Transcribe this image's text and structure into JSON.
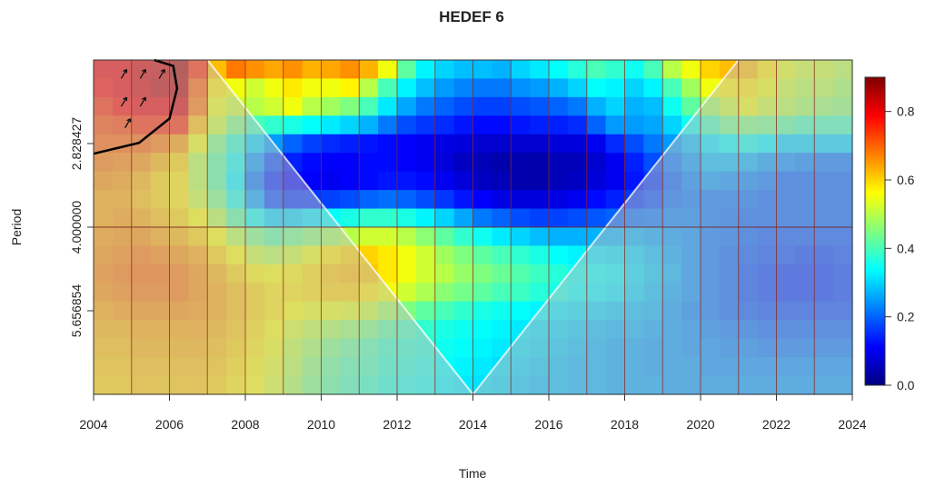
{
  "chart_data": {
    "type": "heatmap",
    "title": "HEDEF 6",
    "xlabel": "Time",
    "ylabel": "Period",
    "x_range": [
      2004,
      2024
    ],
    "x_ticks": [
      "2004",
      "2006",
      "2008",
      "2010",
      "2012",
      "2014",
      "2016",
      "2018",
      "2020",
      "2022",
      "2024"
    ],
    "y_scale": "log2",
    "y_range": [
      2,
      8
    ],
    "y_ticks": [
      {
        "value": 2.828427,
        "label": "2.828427"
      },
      {
        "value": 4.0,
        "label": "4.000000"
      },
      {
        "value": 5.656854,
        "label": "5.656854"
      }
    ],
    "colorbar": {
      "range": [
        0,
        0.9
      ],
      "ticks": [
        "0.0",
        "0.2",
        "0.4",
        "0.6",
        "0.8"
      ],
      "colors": [
        "#00007f",
        "#0000ff",
        "#007fff",
        "#00ffff",
        "#7fff7f",
        "#ffff00",
        "#ff7f00",
        "#ff0000",
        "#7f0000"
      ]
    },
    "grid": "vertical lines at each year",
    "cone_of_influence": [
      [
        2007,
        2
      ],
      [
        2014,
        8
      ],
      [
        2021,
        2
      ]
    ],
    "significance_contour": "region around 2004–2006 at short periods (~2–2.5)",
    "power": {
      "rows_from_short_to_long_period": 18,
      "columns_from_2004_to_2024": 40,
      "values": [
        [
          0.8,
          0.8,
          0.82,
          0.83,
          0.86,
          0.75,
          0.62,
          0.68,
          0.66,
          0.64,
          0.66,
          0.63,
          0.64,
          0.66,
          0.63,
          0.55,
          0.42,
          0.33,
          0.3,
          0.28,
          0.28,
          0.27,
          0.3,
          0.32,
          0.34,
          0.37,
          0.4,
          0.38,
          0.35,
          0.4,
          0.5,
          0.55,
          0.6,
          0.62,
          0.62,
          0.58,
          0.54,
          0.52,
          0.52,
          0.5
        ],
        [
          0.78,
          0.8,
          0.82,
          0.84,
          0.85,
          0.7,
          0.58,
          0.55,
          0.52,
          0.55,
          0.58,
          0.55,
          0.55,
          0.57,
          0.5,
          0.4,
          0.33,
          0.28,
          0.25,
          0.23,
          0.22,
          0.22,
          0.24,
          0.25,
          0.27,
          0.3,
          0.34,
          0.33,
          0.3,
          0.33,
          0.4,
          0.48,
          0.55,
          0.57,
          0.58,
          0.55,
          0.52,
          0.5,
          0.5,
          0.48
        ],
        [
          0.75,
          0.78,
          0.8,
          0.8,
          0.82,
          0.68,
          0.55,
          0.52,
          0.5,
          0.52,
          0.55,
          0.5,
          0.48,
          0.45,
          0.4,
          0.32,
          0.26,
          0.22,
          0.2,
          0.18,
          0.17,
          0.17,
          0.18,
          0.19,
          0.2,
          0.22,
          0.27,
          0.3,
          0.27,
          0.28,
          0.35,
          0.42,
          0.48,
          0.52,
          0.55,
          0.52,
          0.5,
          0.48,
          0.47,
          0.46
        ],
        [
          0.72,
          0.73,
          0.75,
          0.75,
          0.75,
          0.62,
          0.52,
          0.45,
          0.4,
          0.38,
          0.36,
          0.34,
          0.32,
          0.3,
          0.27,
          0.22,
          0.18,
          0.16,
          0.15,
          0.13,
          0.12,
          0.12,
          0.13,
          0.14,
          0.14,
          0.15,
          0.2,
          0.25,
          0.25,
          0.26,
          0.3,
          0.35,
          0.4,
          0.44,
          0.45,
          0.44,
          0.42,
          0.4,
          0.4,
          0.4
        ],
        [
          0.7,
          0.7,
          0.7,
          0.68,
          0.65,
          0.55,
          0.45,
          0.38,
          0.3,
          0.25,
          0.2,
          0.17,
          0.15,
          0.14,
          0.13,
          0.12,
          0.11,
          0.1,
          0.09,
          0.08,
          0.07,
          0.07,
          0.07,
          0.07,
          0.08,
          0.08,
          0.1,
          0.15,
          0.18,
          0.22,
          0.25,
          0.28,
          0.32,
          0.34,
          0.35,
          0.33,
          0.3,
          0.3,
          0.3,
          0.3
        ],
        [
          0.68,
          0.67,
          0.66,
          0.63,
          0.6,
          0.5,
          0.42,
          0.35,
          0.25,
          0.18,
          0.14,
          0.12,
          0.11,
          0.11,
          0.12,
          0.12,
          0.11,
          0.1,
          0.08,
          0.06,
          0.05,
          0.04,
          0.04,
          0.04,
          0.05,
          0.05,
          0.07,
          0.1,
          0.14,
          0.18,
          0.22,
          0.25,
          0.28,
          0.28,
          0.27,
          0.25,
          0.24,
          0.23,
          0.22,
          0.22
        ],
        [
          0.66,
          0.65,
          0.63,
          0.6,
          0.58,
          0.5,
          0.42,
          0.33,
          0.22,
          0.15,
          0.12,
          0.11,
          0.1,
          0.11,
          0.12,
          0.13,
          0.13,
          0.12,
          0.1,
          0.08,
          0.06,
          0.05,
          0.04,
          0.04,
          0.05,
          0.06,
          0.08,
          0.1,
          0.13,
          0.16,
          0.2,
          0.23,
          0.25,
          0.24,
          0.23,
          0.22,
          0.2,
          0.2,
          0.2,
          0.2
        ],
        [
          0.64,
          0.64,
          0.62,
          0.6,
          0.58,
          0.52,
          0.45,
          0.36,
          0.26,
          0.18,
          0.16,
          0.16,
          0.17,
          0.18,
          0.2,
          0.21,
          0.2,
          0.18,
          0.16,
          0.13,
          0.11,
          0.09,
          0.08,
          0.08,
          0.09,
          0.1,
          0.12,
          0.14,
          0.16,
          0.18,
          0.21,
          0.22,
          0.22,
          0.22,
          0.21,
          0.2,
          0.2,
          0.2,
          0.2,
          0.2
        ],
        [
          0.64,
          0.65,
          0.64,
          0.62,
          0.6,
          0.56,
          0.5,
          0.42,
          0.35,
          0.3,
          0.3,
          0.32,
          0.34,
          0.36,
          0.38,
          0.38,
          0.36,
          0.33,
          0.3,
          0.26,
          0.22,
          0.2,
          0.18,
          0.17,
          0.17,
          0.18,
          0.19,
          0.2,
          0.21,
          0.22,
          0.23,
          0.23,
          0.22,
          0.21,
          0.2,
          0.2,
          0.2,
          0.2,
          0.2,
          0.2
        ],
        [
          0.65,
          0.66,
          0.66,
          0.64,
          0.63,
          0.6,
          0.56,
          0.5,
          0.45,
          0.42,
          0.44,
          0.46,
          0.48,
          0.5,
          0.52,
          0.52,
          0.5,
          0.46,
          0.42,
          0.38,
          0.35,
          0.32,
          0.3,
          0.28,
          0.27,
          0.27,
          0.27,
          0.27,
          0.27,
          0.26,
          0.25,
          0.24,
          0.22,
          0.21,
          0.2,
          0.19,
          0.19,
          0.19,
          0.19,
          0.19
        ],
        [
          0.66,
          0.67,
          0.68,
          0.67,
          0.66,
          0.64,
          0.6,
          0.56,
          0.52,
          0.5,
          0.52,
          0.55,
          0.58,
          0.6,
          0.6,
          0.58,
          0.55,
          0.52,
          0.48,
          0.45,
          0.42,
          0.4,
          0.38,
          0.36,
          0.34,
          0.33,
          0.32,
          0.31,
          0.3,
          0.28,
          0.26,
          0.24,
          0.22,
          0.2,
          0.19,
          0.18,
          0.18,
          0.17,
          0.17,
          0.18
        ],
        [
          0.67,
          0.68,
          0.69,
          0.69,
          0.68,
          0.66,
          0.63,
          0.6,
          0.57,
          0.56,
          0.57,
          0.59,
          0.61,
          0.62,
          0.61,
          0.58,
          0.55,
          0.52,
          0.5,
          0.47,
          0.45,
          0.43,
          0.41,
          0.39,
          0.37,
          0.35,
          0.34,
          0.33,
          0.31,
          0.29,
          0.27,
          0.24,
          0.22,
          0.2,
          0.18,
          0.17,
          0.16,
          0.16,
          0.16,
          0.17
        ],
        [
          0.66,
          0.67,
          0.68,
          0.68,
          0.68,
          0.66,
          0.64,
          0.62,
          0.6,
          0.58,
          0.58,
          0.59,
          0.6,
          0.6,
          0.58,
          0.55,
          0.52,
          0.49,
          0.46,
          0.44,
          0.42,
          0.4,
          0.39,
          0.37,
          0.36,
          0.34,
          0.33,
          0.32,
          0.3,
          0.28,
          0.26,
          0.24,
          0.22,
          0.2,
          0.18,
          0.17,
          0.16,
          0.16,
          0.16,
          0.17
        ],
        [
          0.64,
          0.65,
          0.66,
          0.66,
          0.66,
          0.65,
          0.64,
          0.62,
          0.6,
          0.58,
          0.56,
          0.55,
          0.55,
          0.54,
          0.52,
          0.48,
          0.45,
          0.42,
          0.4,
          0.38,
          0.36,
          0.35,
          0.34,
          0.33,
          0.32,
          0.31,
          0.3,
          0.29,
          0.28,
          0.27,
          0.25,
          0.23,
          0.22,
          0.2,
          0.19,
          0.18,
          0.18,
          0.18,
          0.18,
          0.18
        ],
        [
          0.63,
          0.63,
          0.64,
          0.64,
          0.64,
          0.64,
          0.63,
          0.61,
          0.59,
          0.56,
          0.53,
          0.51,
          0.49,
          0.47,
          0.45,
          0.42,
          0.4,
          0.38,
          0.36,
          0.35,
          0.34,
          0.33,
          0.32,
          0.31,
          0.3,
          0.29,
          0.28,
          0.27,
          0.27,
          0.26,
          0.25,
          0.24,
          0.23,
          0.22,
          0.21,
          0.2,
          0.2,
          0.2,
          0.2,
          0.2
        ],
        [
          0.62,
          0.62,
          0.63,
          0.63,
          0.63,
          0.63,
          0.62,
          0.6,
          0.58,
          0.55,
          0.51,
          0.48,
          0.45,
          0.43,
          0.41,
          0.39,
          0.38,
          0.37,
          0.35,
          0.34,
          0.33,
          0.32,
          0.31,
          0.3,
          0.29,
          0.28,
          0.27,
          0.26,
          0.26,
          0.25,
          0.25,
          0.24,
          0.24,
          0.23,
          0.23,
          0.22,
          0.22,
          0.22,
          0.22,
          0.22
        ],
        [
          0.61,
          0.61,
          0.62,
          0.62,
          0.62,
          0.62,
          0.61,
          0.59,
          0.57,
          0.54,
          0.5,
          0.46,
          0.43,
          0.41,
          0.4,
          0.38,
          0.37,
          0.36,
          0.34,
          0.33,
          0.32,
          0.31,
          0.3,
          0.29,
          0.28,
          0.27,
          0.27,
          0.26,
          0.26,
          0.25,
          0.25,
          0.25,
          0.24,
          0.24,
          0.24,
          0.24,
          0.24,
          0.24,
          0.24,
          0.24
        ],
        [
          0.6,
          0.6,
          0.61,
          0.61,
          0.61,
          0.61,
          0.6,
          0.58,
          0.56,
          0.53,
          0.49,
          0.45,
          0.42,
          0.4,
          0.39,
          0.37,
          0.36,
          0.35,
          0.33,
          0.32,
          0.31,
          0.3,
          0.29,
          0.28,
          0.28,
          0.27,
          0.27,
          0.26,
          0.26,
          0.26,
          0.25,
          0.25,
          0.25,
          0.25,
          0.25,
          0.25,
          0.25,
          0.25,
          0.25,
          0.25
        ]
      ]
    }
  }
}
